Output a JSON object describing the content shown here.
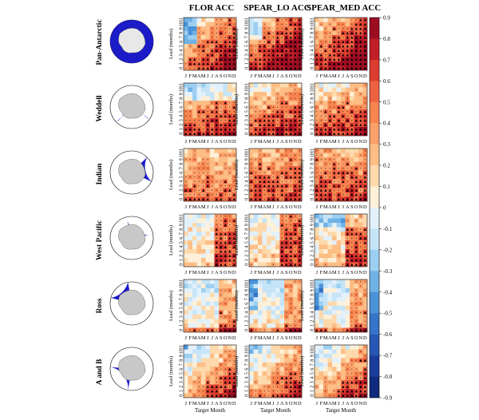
{
  "chart_data": {
    "type": "heatmap",
    "columns": [
      "FLOR ACC",
      "SPEAR_LO ACC",
      "SPEAR_MED ACC"
    ],
    "regions": [
      "Pan-Antarctic",
      "Weddell",
      "Indian",
      "West Pacific",
      "Ross",
      "A and B"
    ],
    "xlabel": "Target Month",
    "ylabel": "Lead (months)",
    "x_ticks": [
      "J",
      "F",
      "M",
      "A",
      "M",
      "J",
      "J",
      "A",
      "S",
      "O",
      "N",
      "D"
    ],
    "y_ticks": [
      "0",
      "1",
      "2",
      "3",
      "4",
      "5",
      "6",
      "7",
      "8",
      "9",
      "10",
      "11"
    ],
    "colorbar": {
      "min": -0.9,
      "max": 0.9,
      "ticks": [
        0.9,
        0.8,
        0.7,
        0.6,
        0.5,
        0.4,
        0.3,
        0.2,
        0.1,
        0,
        -0.1,
        -0.2,
        -0.3,
        -0.4,
        -0.5,
        -0.6,
        -0.7,
        -0.8,
        -0.9
      ]
    },
    "colors": {
      "region_fill": "#1b1bc8",
      "continent": "#c8c8c8",
      "sig_marker": "#000000"
    }
  }
}
